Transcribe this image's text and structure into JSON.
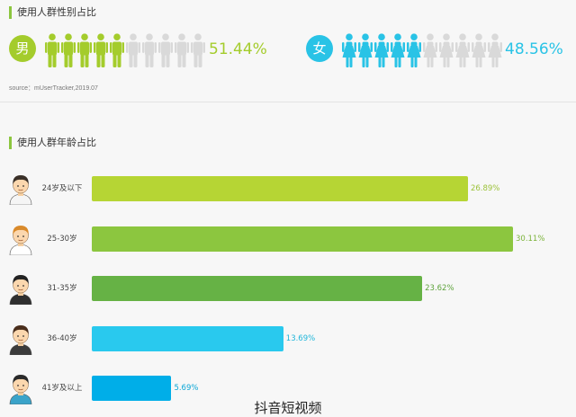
{
  "colors": {
    "accent": "#8cc63f",
    "male": "#a4cc2c",
    "female": "#29c3e6",
    "inactive": "#d9d9d9"
  },
  "gender_section": {
    "title": "使用人群性别占比",
    "male": {
      "badge": "男",
      "percent_label": "51.44%",
      "highlighted_icons": 5,
      "total_icons": 10,
      "icon": "male-person-icon"
    },
    "female": {
      "badge": "女",
      "percent_label": "48.56%",
      "highlighted_icons": 5,
      "total_icons": 10,
      "icon": "female-person-icon"
    },
    "source": "source：mUserTracker,2019.07"
  },
  "age_section": {
    "title": "使用人群年龄占比"
  },
  "watermark": "抖音短视频",
  "chart_data": [
    {
      "type": "pictograph",
      "title": "使用人群性别占比",
      "categories": [
        "男",
        "女"
      ],
      "values": [
        51.44,
        48.56
      ],
      "unit": "%"
    },
    {
      "type": "bar",
      "orientation": "horizontal",
      "title": "使用人群年龄占比",
      "categories": [
        "24岁及以下",
        "25-30岁",
        "31-35岁",
        "36-40岁",
        "41岁及以上"
      ],
      "values": [
        26.89,
        30.11,
        23.62,
        13.69,
        5.69
      ],
      "labels": [
        "26.89%",
        "30.11%",
        "23.62%",
        "13.69%",
        "5.69%"
      ],
      "colors": [
        "#b6d534",
        "#8cc63f",
        "#66b245",
        "#29c9ee",
        "#00aee8"
      ],
      "label_colors": [
        "#9cc23a",
        "#7bb33a",
        "#5ea33c",
        "#20b6da",
        "#0aa6d6"
      ],
      "xlim": [
        0,
        30.11
      ],
      "grid": false
    }
  ]
}
